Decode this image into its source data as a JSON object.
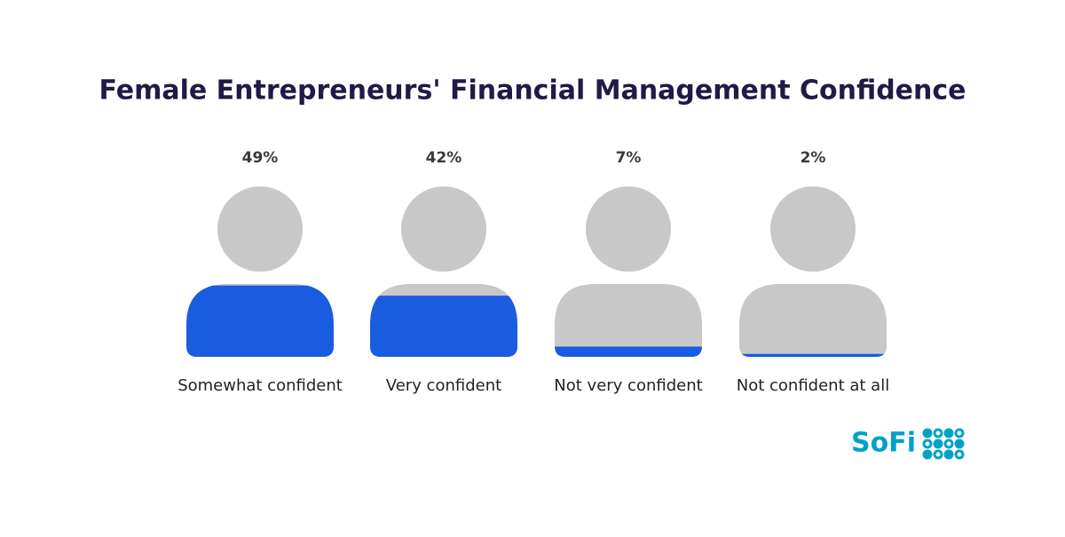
{
  "chart_data": {
    "type": "pictograph",
    "title": "Female Entrepreneurs' Financial Management Confidence",
    "categories": [
      "Somewhat confident",
      "Very confident",
      "Not very confident",
      "Not confident at all"
    ],
    "values": [
      49,
      42,
      7,
      2
    ],
    "value_labels": [
      "49%",
      "42%",
      "7%",
      "2%"
    ],
    "ylim": [
      0,
      50
    ],
    "color": "#1a5ce0",
    "base_color": "#c8c8c8"
  },
  "logo": {
    "text": "SoFi"
  }
}
